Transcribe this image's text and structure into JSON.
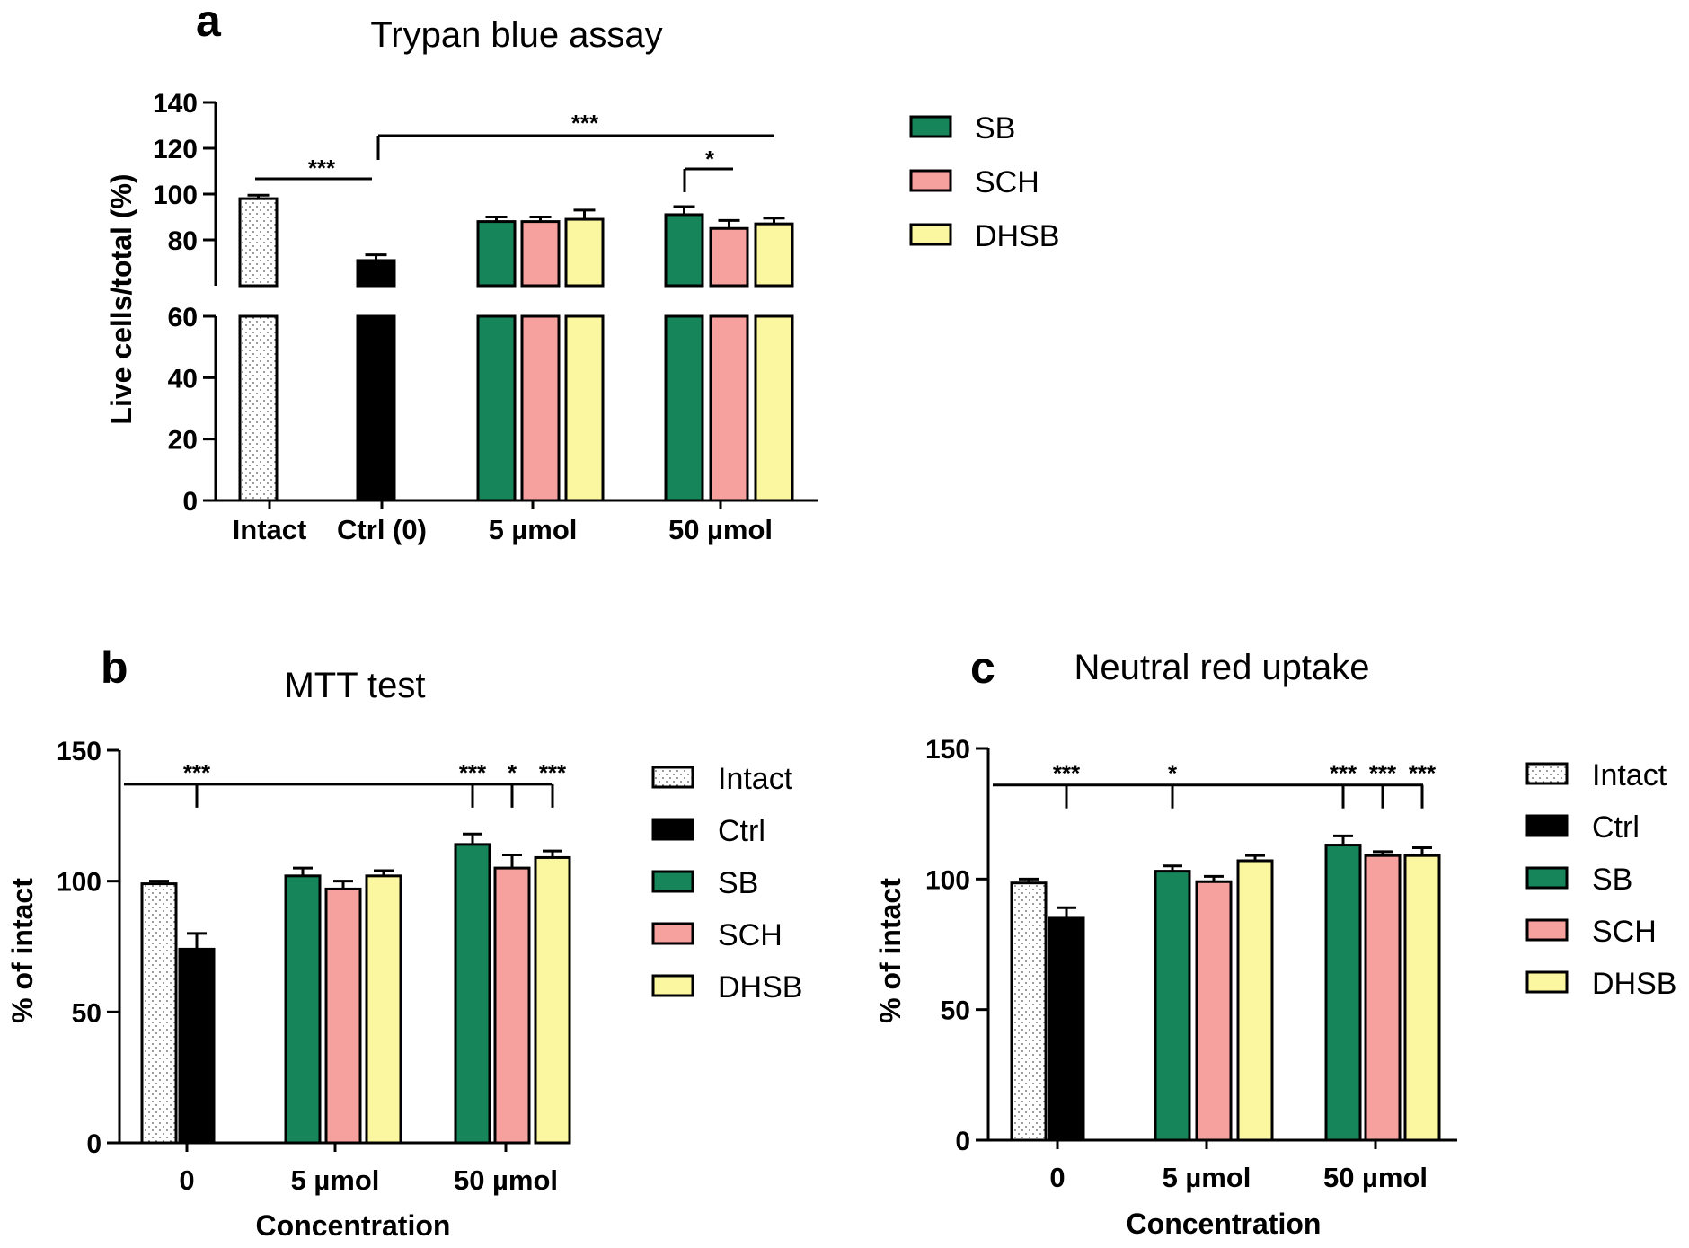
{
  "colors": {
    "Intact": "#ffffff",
    "Ctrl": "#000000",
    "SB": "#16855a",
    "SCH": "#f6a19d",
    "DHSB": "#fbf7a0"
  },
  "chart_data": [
    {
      "panel": "a",
      "type": "bar",
      "title": "Trypan blue assay",
      "ylabel": "Live cells/total (%)",
      "xlabel": "",
      "ylim": [
        0,
        140
      ],
      "broken_axis": {
        "lower": [
          0,
          60
        ],
        "upper": [
          60,
          140
        ]
      },
      "yticks_lower": [
        "0",
        "20",
        "40",
        "60"
      ],
      "yticks_upper": [
        "60",
        "80",
        "100",
        "120",
        "140"
      ],
      "groups": [
        "Intact",
        "Ctrl (0)",
        "5 µmol",
        "50 µmol"
      ],
      "bars": [
        {
          "group": 0,
          "series": "Intact",
          "value": 98,
          "error": 1.5
        },
        {
          "group": 1,
          "series": "Ctrl",
          "value": 71,
          "error": 2.5
        },
        {
          "group": 2,
          "series": "SB",
          "value": 88,
          "error": 2
        },
        {
          "group": 2,
          "series": "SCH",
          "value": 88,
          "error": 2
        },
        {
          "group": 2,
          "series": "DHSB",
          "value": 89,
          "error": 4
        },
        {
          "group": 3,
          "series": "SB",
          "value": 91,
          "error": 3.5
        },
        {
          "group": 3,
          "series": "SCH",
          "value": 85,
          "error": 3.5
        },
        {
          "group": 3,
          "series": "DHSB",
          "value": 87,
          "error": 2.5
        }
      ],
      "legend": [
        "SB",
        "SCH",
        "DHSB"
      ],
      "significance": [
        {
          "label": "***",
          "from": "Intact",
          "to": "Ctrl (0)"
        },
        {
          "label": "***",
          "from": "Ctrl (0)",
          "to": "50 µmol"
        },
        {
          "label": "*",
          "from": "50 µmol SB",
          "to": "50 µmol SCH"
        }
      ]
    },
    {
      "panel": "b",
      "type": "bar",
      "title": "MTT test",
      "ylabel": "% of intact",
      "xlabel": "Concentration",
      "ylim": [
        0,
        150
      ],
      "yticks": [
        "0",
        "50",
        "100",
        "150"
      ],
      "groups": [
        "0",
        "5 µmol",
        "50 µmol"
      ],
      "bars": [
        {
          "group": 0,
          "series": "Intact",
          "value": 99,
          "error": 1
        },
        {
          "group": 0,
          "series": "Ctrl",
          "value": 74,
          "error": 6
        },
        {
          "group": 1,
          "series": "SB",
          "value": 102,
          "error": 3
        },
        {
          "group": 1,
          "series": "SCH",
          "value": 97,
          "error": 3
        },
        {
          "group": 1,
          "series": "DHSB",
          "value": 102,
          "error": 2
        },
        {
          "group": 2,
          "series": "SB",
          "value": 114,
          "error": 4
        },
        {
          "group": 2,
          "series": "SCH",
          "value": 105,
          "error": 5
        },
        {
          "group": 2,
          "series": "DHSB",
          "value": 109,
          "error": 2.5
        }
      ],
      "legend": [
        "Intact",
        "Ctrl",
        "SB",
        "SCH",
        "DHSB"
      ],
      "significance_line": 137,
      "significance": [
        {
          "label": "***",
          "bar": 1
        },
        {
          "label": "***",
          "bar": 5
        },
        {
          "label": "*",
          "bar": 6
        },
        {
          "label": "***",
          "bar": 7
        }
      ]
    },
    {
      "panel": "c",
      "type": "bar",
      "title": "Neutral red uptake",
      "ylabel": "% of intact",
      "xlabel": "Concentration",
      "ylim": [
        0,
        150
      ],
      "yticks": [
        "0",
        "50",
        "100",
        "150"
      ],
      "groups": [
        "0",
        "5 µmol",
        "50 µmol"
      ],
      "bars": [
        {
          "group": 0,
          "series": "Intact",
          "value": 98.5,
          "error": 1.5
        },
        {
          "group": 0,
          "series": "Ctrl",
          "value": 85,
          "error": 4
        },
        {
          "group": 1,
          "series": "SB",
          "value": 103,
          "error": 2
        },
        {
          "group": 1,
          "series": "SCH",
          "value": 99,
          "error": 2
        },
        {
          "group": 1,
          "series": "DHSB",
          "value": 107,
          "error": 2
        },
        {
          "group": 2,
          "series": "SB",
          "value": 113,
          "error": 3.5
        },
        {
          "group": 2,
          "series": "SCH",
          "value": 109,
          "error": 1.5
        },
        {
          "group": 2,
          "series": "DHSB",
          "value": 109,
          "error": 3
        }
      ],
      "legend": [
        "Intact",
        "Ctrl",
        "SB",
        "SCH",
        "DHSB"
      ],
      "significance_line": 136,
      "significance": [
        {
          "label": "***",
          "bar": 1
        },
        {
          "label": "*",
          "bar": 2
        },
        {
          "label": "***",
          "bar": 5
        },
        {
          "label": "***",
          "bar": 6
        },
        {
          "label": "***",
          "bar": 7
        }
      ]
    }
  ]
}
